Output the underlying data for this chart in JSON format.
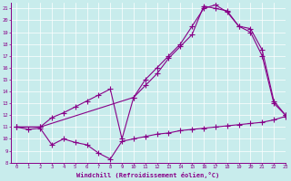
{
  "xlabel": "Windchill (Refroidissement éolien,°C)",
  "xlim": [
    -0.5,
    23
  ],
  "ylim": [
    8,
    21.5
  ],
  "yticks": [
    8,
    9,
    10,
    11,
    12,
    13,
    14,
    15,
    16,
    17,
    18,
    19,
    20,
    21
  ],
  "xticks": [
    0,
    1,
    2,
    3,
    4,
    5,
    6,
    7,
    8,
    9,
    10,
    11,
    12,
    13,
    14,
    15,
    16,
    17,
    18,
    19,
    20,
    21,
    22,
    23
  ],
  "bg_color": "#c8ecec",
  "line_color": "#880088",
  "grid_color": "#ffffff",
  "line1_x": [
    0,
    1,
    2,
    3,
    4,
    5,
    6,
    7,
    8,
    9,
    10,
    11,
    12,
    13,
    14,
    15,
    16,
    17,
    18,
    19,
    20,
    21,
    22,
    23
  ],
  "line1_y": [
    11.0,
    10.8,
    10.9,
    9.5,
    10.0,
    9.7,
    9.5,
    8.8,
    8.3,
    9.8,
    10.0,
    10.2,
    10.4,
    10.5,
    10.7,
    10.8,
    10.9,
    11.0,
    11.1,
    11.2,
    11.3,
    11.4,
    11.6,
    11.9
  ],
  "line2_x": [
    0,
    2,
    3,
    4,
    5,
    6,
    7,
    8,
    9,
    10,
    11,
    12,
    13,
    14,
    15,
    16,
    17,
    18,
    19,
    20,
    21,
    22,
    23
  ],
  "line2_y": [
    11.0,
    11.0,
    11.8,
    12.2,
    12.7,
    13.2,
    13.7,
    14.2,
    10.0,
    13.5,
    15.0,
    16.0,
    17.0,
    18.0,
    19.5,
    21.0,
    21.3,
    20.7,
    19.5,
    19.3,
    17.5,
    13.2,
    12.0
  ],
  "line3_x": [
    0,
    2,
    10,
    11,
    12,
    13,
    14,
    15,
    16,
    17,
    18,
    19,
    20,
    21,
    22,
    23
  ],
  "line3_y": [
    11.0,
    11.0,
    13.5,
    14.5,
    15.5,
    16.8,
    17.8,
    18.8,
    21.2,
    21.0,
    20.8,
    19.5,
    19.0,
    17.0,
    13.0,
    12.0
  ]
}
